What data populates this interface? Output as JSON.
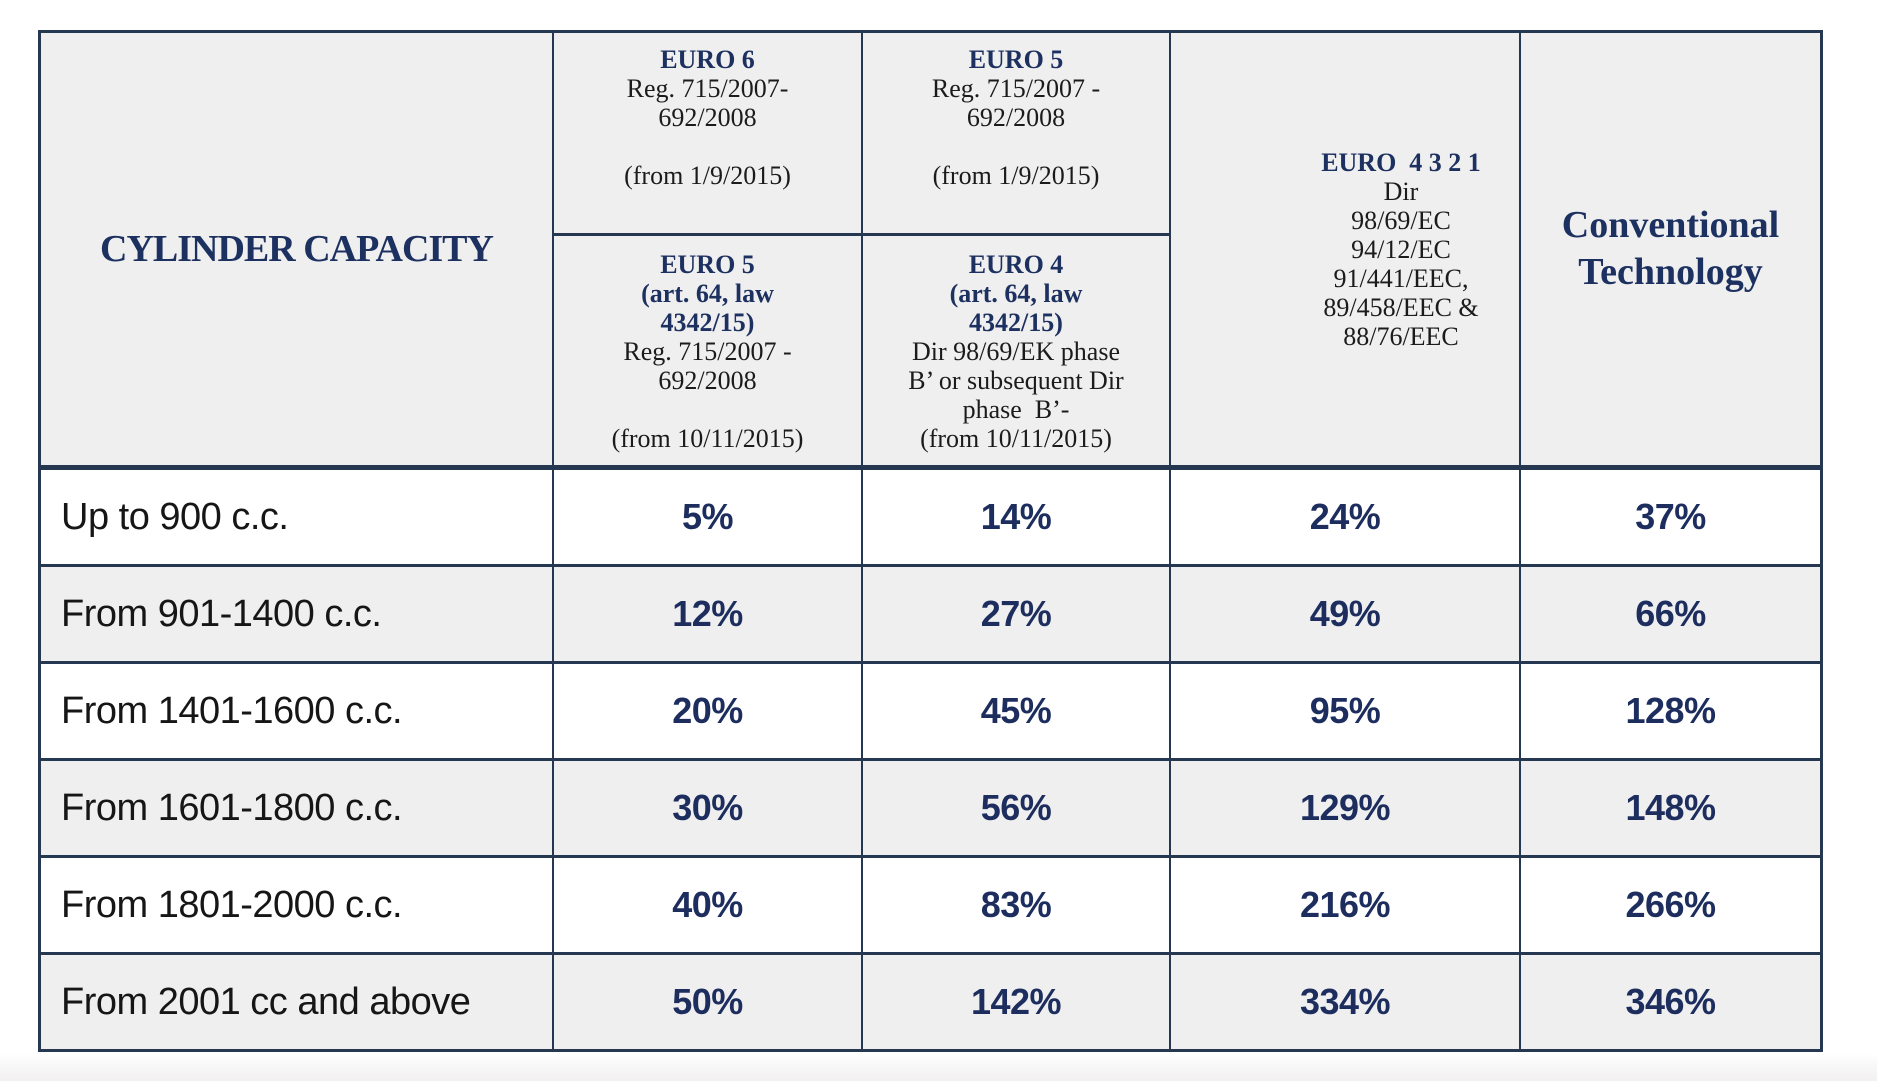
{
  "header": {
    "cylinder": "CYLINDER CAPACITY",
    "euro6_column": {
      "top": {
        "title": "EURO 6",
        "reg1": "Reg. 715/2007-",
        "reg2": "692/2008",
        "from": "(from 1/9/2015)"
      },
      "bottom": {
        "title": "EURO 5",
        "law1": "(art. 64, law",
        "law2": "4342/15)",
        "reg1": "Reg. 715/2007 -",
        "reg2": "692/2008",
        "from": "(from 10/11/2015)"
      }
    },
    "euro5_column": {
      "top": {
        "title": "EURO 5",
        "reg1": "Reg. 715/2007 -",
        "reg2": "692/2008",
        "from": "(from 1/9/2015)"
      },
      "bottom": {
        "title": "EURO 4",
        "law1": "(art. 64, law",
        "law2": "4342/15)",
        "dir1": "Dir 98/69/EK phase",
        "dir2": "B’ or subsequent Dir",
        "dir3": "phase  B’-",
        "from": "(from 10/11/2015)"
      }
    },
    "euro4321_column": {
      "title": "EURO  4 3 2 1",
      "lines": [
        "Dir",
        "98/69/EC",
        "94/12/EC",
        "91/441/EEC,",
        "89/458/EEC &",
        "88/76/EEC"
      ]
    },
    "conventional": "Conventional Technology"
  },
  "rows": [
    {
      "label": "Up to 900 c.c.",
      "values": [
        "5%",
        "14%",
        "24%",
        "37%"
      ]
    },
    {
      "label": "From 901-1400 c.c.",
      "values": [
        "12%",
        "27%",
        "49%",
        "66%"
      ]
    },
    {
      "label": "From 1401-1600 c.c.",
      "values": [
        "20%",
        "45%",
        "95%",
        "128%"
      ]
    },
    {
      "label": "From 1601-1800 c.c.",
      "values": [
        "30%",
        "56%",
        "129%",
        "148%"
      ]
    },
    {
      "label": "From 1801-2000 c.c.",
      "values": [
        "40%",
        "83%",
        "216%",
        "266%"
      ]
    },
    {
      "label": "From 2001 cc and above",
      "values": [
        "50%",
        "142%",
        "334%",
        "346%"
      ]
    }
  ],
  "colors": {
    "border_navy": "#263751",
    "navy_text": "#1d3160",
    "percent_navy": "#1c2d5e",
    "header_bg": "#f0eff0",
    "row_alt_bg": "#f0eff0",
    "row_bg": "#ffffff"
  }
}
